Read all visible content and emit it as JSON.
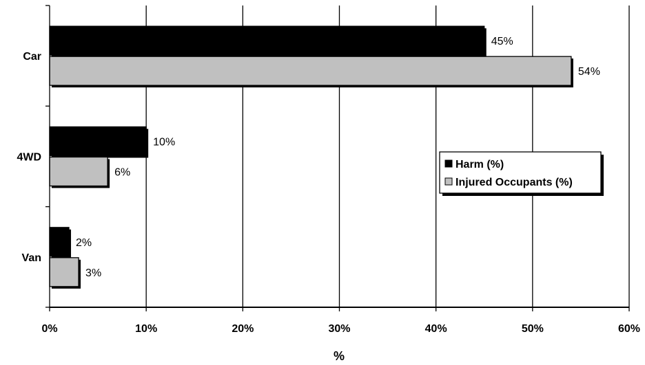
{
  "chart_data": {
    "type": "bar",
    "orientation": "horizontal",
    "categories": [
      "Car",
      "4WD",
      "Van"
    ],
    "series": [
      {
        "name": "Harm (%)",
        "values": [
          45,
          10,
          2
        ],
        "labels": [
          "45%",
          "10%",
          "2%"
        ],
        "color": "#000000"
      },
      {
        "name": "Injured Occupants (%)",
        "values": [
          54,
          6,
          3
        ],
        "labels": [
          "54%",
          "6%",
          "3%"
        ],
        "color": "#c0c0c0"
      }
    ],
    "xlabel": "%",
    "xlim": [
      0,
      60
    ],
    "xticks": [
      "0%",
      "10%",
      "20%",
      "30%",
      "40%",
      "50%",
      "60%"
    ],
    "grid": true,
    "legend_position": "right"
  }
}
